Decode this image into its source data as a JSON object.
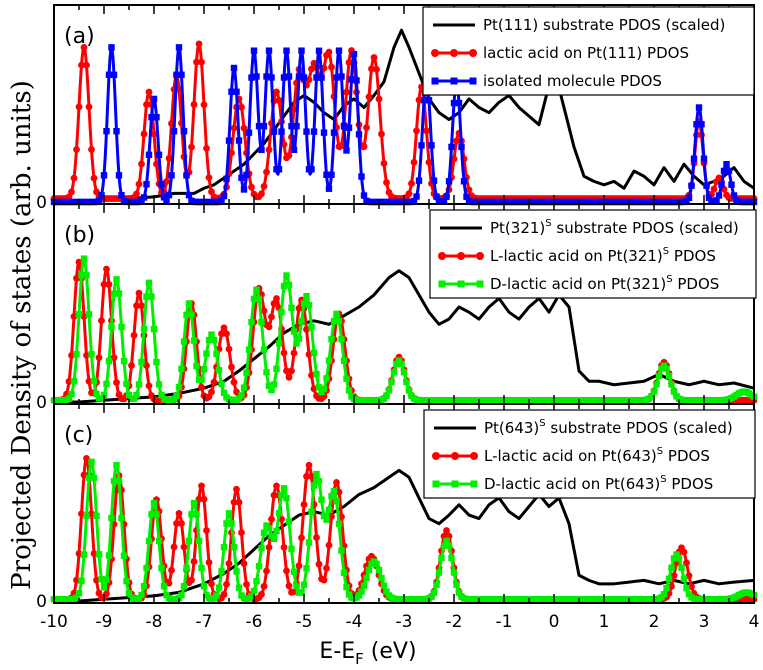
{
  "chart_data": {
    "type": "line",
    "title": "",
    "xlabel": "E-E",
    "xlabel_subscript": "F",
    "xlabel_unit": " (eV)",
    "ylabel": "Projected Density of states (arb. units)",
    "xlim": [
      -10,
      4
    ],
    "x_ticks": [
      "-10",
      "-9",
      "-8",
      "-7",
      "-6",
      "-5",
      "-4",
      "-3",
      "-2",
      "-1",
      "0",
      "1",
      "2",
      "3",
      "4"
    ],
    "zero_label": "0",
    "colors": {
      "substrate": "#000000",
      "lactic": "#ff0000",
      "molecule": "#0000ff",
      "dlactic": "#00ee00"
    },
    "panels": [
      {
        "label": "(a)",
        "ylim": [
          0,
          1.1
        ],
        "legend": [
          {
            "color": "#000000",
            "marker": "none",
            "text": "Pt(111) substrate PDOS (scaled)",
            "sup": "",
            "post": ""
          },
          {
            "color": "#ff0000",
            "marker": "circle",
            "text": "lactic acid on Pt(111) PDOS",
            "sup": "",
            "post": ""
          },
          {
            "color": "#0000ff",
            "marker": "square",
            "text": "isolated molecule PDOS",
            "sup": "",
            "post": ""
          }
        ],
        "series": [
          {
            "name": "Pt(111) substrate PDOS (scaled)",
            "color": "#000000",
            "marker": "none",
            "x": [
              -10,
              -9.5,
              -9,
              -8.5,
              -8,
              -7.6,
              -7.2,
              -7,
              -6.8,
              -6.6,
              -6.4,
              -6.2,
              -6,
              -5.8,
              -5.6,
              -5.4,
              -5.2,
              -5,
              -4.8,
              -4.6,
              -4.4,
              -4.2,
              -4,
              -3.8,
              -3.6,
              -3.4,
              -3.2,
              -3.05,
              -2.9,
              -2.7,
              -2.5,
              -2.3,
              -2.1,
              -1.9,
              -1.7,
              -1.5,
              -1.3,
              -1.1,
              -0.9,
              -0.7,
              -0.5,
              -0.3,
              -0.1,
              0.05,
              0.2,
              0.4,
              0.6,
              0.8,
              1,
              1.2,
              1.4,
              1.6,
              1.8,
              2,
              2.2,
              2.4,
              2.6,
              2.8,
              3,
              3.2,
              3.4,
              3.6,
              3.8,
              4
            ],
            "y": [
              0,
              0,
              0.01,
              0.02,
              0.03,
              0.05,
              0.05,
              0.08,
              0.1,
              0.14,
              0.18,
              0.22,
              0.28,
              0.34,
              0.42,
              0.5,
              0.58,
              0.62,
              0.58,
              0.52,
              0.48,
              0.56,
              0.6,
              0.55,
              0.62,
              0.7,
              0.9,
              1.0,
              0.9,
              0.75,
              0.6,
              0.52,
              0.48,
              0.52,
              0.6,
              0.55,
              0.52,
              0.58,
              0.62,
              0.55,
              0.5,
              0.45,
              0.68,
              0.72,
              0.55,
              0.32,
              0.15,
              0.12,
              0.1,
              0.12,
              0.08,
              0.18,
              0.15,
              0.1,
              0.2,
              0.12,
              0.22,
              0.15,
              0.1,
              0.12,
              0.15,
              0.2,
              0.12,
              0.08
            ]
          },
          {
            "name": "lactic acid on Pt(111) PDOS",
            "color": "#ff0000",
            "marker": "circle",
            "peaks": [
              [
                -9.4,
                0.88,
                0.1
              ],
              [
                -8.1,
                0.62,
                0.1
              ],
              [
                -7.55,
                0.72,
                0.1
              ],
              [
                -7.1,
                0.9,
                0.1
              ],
              [
                -6.3,
                0.58,
                0.12
              ],
              [
                -5.55,
                0.62,
                0.12
              ],
              [
                -5.1,
                0.72,
                0.12
              ],
              [
                -4.8,
                0.72,
                0.12
              ],
              [
                -4.5,
                0.82,
                0.12
              ],
              [
                -4.05,
                0.86,
                0.12
              ],
              [
                -3.6,
                0.82,
                0.12
              ],
              [
                -2.65,
                0.65,
                0.1
              ],
              [
                -1.9,
                0.38,
                0.1
              ],
              [
                2.9,
                0.45,
                0.08
              ],
              [
                3.3,
                0.12,
                0.08
              ]
            ],
            "baseline": 0.02
          },
          {
            "name": "isolated molecule PDOS",
            "color": "#0000ff",
            "marker": "square",
            "peaks": [
              [
                -8.85,
                0.9,
                0.08
              ],
              [
                -8.0,
                0.6,
                0.08
              ],
              [
                -7.5,
                0.9,
                0.08
              ],
              [
                -6.4,
                0.78,
                0.08
              ],
              [
                -6.0,
                0.88,
                0.08
              ],
              [
                -5.7,
                0.88,
                0.08
              ],
              [
                -5.35,
                0.88,
                0.08
              ],
              [
                -5.05,
                0.88,
                0.08
              ],
              [
                -4.7,
                0.88,
                0.08
              ],
              [
                -4.3,
                0.88,
                0.08
              ],
              [
                -4.0,
                0.86,
                0.08
              ],
              [
                -2.55,
                0.72,
                0.08
              ],
              [
                -1.95,
                0.7,
                0.08
              ],
              [
                2.9,
                0.55,
                0.08
              ],
              [
                3.45,
                0.22,
                0.08
              ]
            ],
            "baseline": 0
          }
        ]
      },
      {
        "label": "(b)",
        "ylim": [
          0,
          1.1
        ],
        "legend": [
          {
            "color": "#000000",
            "marker": "none",
            "text": "Pt(321)",
            "sup": "S",
            "post": " substrate PDOS  (scaled)"
          },
          {
            "color": "#ff0000",
            "marker": "circle",
            "text": "L-lactic acid on Pt(321)",
            "sup": "S",
            "post": " PDOS"
          },
          {
            "color": "#00ee00",
            "marker": "square",
            "text": "D-lactic acid on Pt(321)",
            "sup": "S",
            "post": " PDOS"
          }
        ],
        "series": [
          {
            "name": "Pt(321)S substrate PDOS (scaled)",
            "color": "#000000",
            "marker": "none",
            "x": [
              -10,
              -9.5,
              -9,
              -8.5,
              -8,
              -7.5,
              -7,
              -6.6,
              -6.3,
              -6,
              -5.7,
              -5.4,
              -5.1,
              -4.8,
              -4.5,
              -4.2,
              -3.9,
              -3.6,
              -3.3,
              -3.1,
              -2.9,
              -2.7,
              -2.5,
              -2.3,
              -2.1,
              -1.9,
              -1.7,
              -1.5,
              -1.3,
              -1.1,
              -0.9,
              -0.7,
              -0.5,
              -0.3,
              -0.1,
              0.1,
              0.3,
              0.5,
              0.7,
              0.9,
              1.2,
              1.5,
              1.8,
              2.1,
              2.4,
              2.7,
              3,
              3.3,
              3.6,
              4
            ],
            "y": [
              0,
              0,
              0.01,
              0.02,
              0.03,
              0.05,
              0.08,
              0.12,
              0.18,
              0.25,
              0.32,
              0.4,
              0.45,
              0.47,
              0.45,
              0.5,
              0.55,
              0.62,
              0.72,
              0.76,
              0.72,
              0.62,
              0.52,
              0.45,
              0.48,
              0.55,
              0.52,
              0.48,
              0.55,
              0.6,
              0.52,
              0.48,
              0.55,
              0.6,
              0.52,
              0.62,
              0.55,
              0.18,
              0.12,
              0.12,
              0.1,
              0.11,
              0.12,
              0.16,
              0.12,
              0.1,
              0.12,
              0.1,
              0.11,
              0.08
            ]
          },
          {
            "name": "L-lactic acid on Pt(321)S PDOS",
            "color": "#ff0000",
            "marker": "circle",
            "peaks": [
              [
                -9.5,
                0.8,
                0.1
              ],
              [
                -8.95,
                0.76,
                0.1
              ],
              [
                -8.3,
                0.62,
                0.1
              ],
              [
                -7.25,
                0.56,
                0.1
              ],
              [
                -6.6,
                0.42,
                0.12
              ],
              [
                -5.9,
                0.64,
                0.12
              ],
              [
                -5.55,
                0.58,
                0.12
              ],
              [
                -5.05,
                0.58,
                0.12
              ],
              [
                -4.3,
                0.5,
                0.12
              ],
              [
                -3.1,
                0.25,
                0.12
              ],
              [
                2.2,
                0.22,
                0.12
              ]
            ],
            "baseline": 0.01
          },
          {
            "name": "D-lactic acid on Pt(321)S PDOS",
            "color": "#00ee00",
            "marker": "square",
            "peaks": [
              [
                -9.4,
                0.82,
                0.1
              ],
              [
                -8.75,
                0.7,
                0.1
              ],
              [
                -8.1,
                0.68,
                0.1
              ],
              [
                -7.3,
                0.56,
                0.1
              ],
              [
                -6.85,
                0.38,
                0.12
              ],
              [
                -5.95,
                0.64,
                0.12
              ],
              [
                -5.35,
                0.72,
                0.12
              ],
              [
                -4.95,
                0.6,
                0.12
              ],
              [
                -4.35,
                0.5,
                0.12
              ],
              [
                -3.1,
                0.23,
                0.12
              ],
              [
                2.2,
                0.2,
                0.12
              ],
              [
                3.8,
                0.05,
                0.15
              ]
            ],
            "baseline": 0.01
          }
        ]
      },
      {
        "label": "(c)",
        "ylim": [
          0,
          1.1
        ],
        "legend": [
          {
            "color": "#000000",
            "marker": "none",
            "text": "Pt(643)",
            "sup": "S",
            "post": " substrate PDOS  (scaled)"
          },
          {
            "color": "#ff0000",
            "marker": "circle",
            "text": "L-lactic acid on Pt(643)",
            "sup": "S",
            "post": " PDOS"
          },
          {
            "color": "#00ee00",
            "marker": "square",
            "text": "D-lactic acid on Pt(643)",
            "sup": "S",
            "post": " PDOS"
          }
        ],
        "series": [
          {
            "name": "Pt(643)S substrate PDOS (scaled)",
            "color": "#000000",
            "marker": "none",
            "x": [
              -10,
              -9.5,
              -9,
              -8.5,
              -8,
              -7.5,
              -7,
              -6.6,
              -6.3,
              -6,
              -5.7,
              -5.4,
              -5.1,
              -4.8,
              -4.5,
              -4.2,
              -3.9,
              -3.6,
              -3.3,
              -3.1,
              -2.9,
              -2.7,
              -2.5,
              -2.3,
              -2.1,
              -1.9,
              -1.7,
              -1.5,
              -1.3,
              -1.1,
              -0.9,
              -0.7,
              -0.5,
              -0.3,
              -0.1,
              0.1,
              0.3,
              0.5,
              0.7,
              0.9,
              1.2,
              1.5,
              1.8,
              2.1,
              2.4,
              2.7,
              3,
              3.3,
              3.6,
              4
            ],
            "y": [
              0,
              0,
              0.01,
              0.02,
              0.03,
              0.05,
              0.1,
              0.16,
              0.22,
              0.3,
              0.38,
              0.44,
              0.5,
              0.52,
              0.5,
              0.55,
              0.62,
              0.66,
              0.72,
              0.76,
              0.72,
              0.6,
              0.48,
              0.45,
              0.5,
              0.56,
              0.5,
              0.48,
              0.56,
              0.6,
              0.52,
              0.48,
              0.55,
              0.62,
              0.55,
              0.6,
              0.45,
              0.15,
              0.12,
              0.1,
              0.1,
              0.11,
              0.12,
              0.1,
              0.12,
              0.1,
              0.12,
              0.1,
              0.11,
              0.12
            ]
          },
          {
            "name": "L-lactic acid on Pt(643)S PDOS",
            "color": "#ff0000",
            "marker": "circle",
            "peaks": [
              [
                -9.35,
                0.82,
                0.1
              ],
              [
                -8.7,
                0.72,
                0.1
              ],
              [
                -7.95,
                0.58,
                0.1
              ],
              [
                -7.5,
                0.5,
                0.1
              ],
              [
                -7.05,
                0.66,
                0.1
              ],
              [
                -6.35,
                0.64,
                0.1
              ],
              [
                -5.55,
                0.66,
                0.12
              ],
              [
                -4.9,
                0.78,
                0.12
              ],
              [
                -4.35,
                0.68,
                0.12
              ],
              [
                -3.65,
                0.25,
                0.14
              ],
              [
                -2.15,
                0.4,
                0.12
              ],
              [
                2.55,
                0.3,
                0.12
              ]
            ],
            "baseline": 0.01
          },
          {
            "name": "D-lactic acid on Pt(643)S PDOS",
            "color": "#00ee00",
            "marker": "square",
            "peaks": [
              [
                -9.25,
                0.8,
                0.1
              ],
              [
                -8.75,
                0.78,
                0.1
              ],
              [
                -8.0,
                0.56,
                0.1
              ],
              [
                -7.2,
                0.56,
                0.1
              ],
              [
                -6.5,
                0.5,
                0.1
              ],
              [
                -5.75,
                0.42,
                0.12
              ],
              [
                -5.4,
                0.64,
                0.12
              ],
              [
                -4.75,
                0.72,
                0.12
              ],
              [
                -4.4,
                0.62,
                0.12
              ],
              [
                -3.6,
                0.22,
                0.14
              ],
              [
                -2.15,
                0.34,
                0.12
              ],
              [
                2.45,
                0.26,
                0.12
              ],
              [
                3.85,
                0.04,
                0.15
              ]
            ],
            "baseline": 0.01
          }
        ]
      }
    ]
  }
}
